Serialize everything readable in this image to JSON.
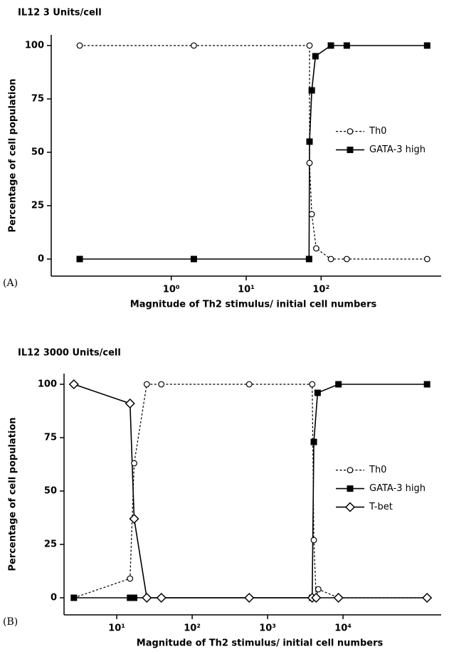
{
  "chart_data": [
    {
      "type": "line",
      "title": "IL12   3 Units/cell",
      "label": "(A)",
      "xlabel": "Magnitude of Th2 stimulus/ initial cell numbers",
      "ylabel": "Percentage of cell population",
      "xscale": "log",
      "xlim": [
        0.025,
        4000
      ],
      "ylim": [
        -8,
        105
      ],
      "xticks": [
        {
          "value": 1,
          "label": "10⁰"
        },
        {
          "value": 10,
          "label": "10¹"
        },
        {
          "value": 100,
          "label": "10²"
        }
      ],
      "yticks": [
        0,
        25,
        50,
        75,
        100
      ],
      "legend": "center right",
      "series": [
        {
          "name": "Th0",
          "color": "#000000",
          "line_style": "dashed",
          "marker": "circle",
          "x": [
            0.06,
            2,
            70,
            70,
            75,
            86,
            135,
            220,
            2600
          ],
          "values": [
            100,
            100,
            100,
            45,
            21,
            5,
            0,
            0,
            0
          ]
        },
        {
          "name": "GATA-3 high",
          "color": "#000000",
          "line_style": "solid",
          "marker": "square",
          "x": [
            0.06,
            2,
            69,
            70,
            75,
            84,
            135,
            220,
            2600
          ],
          "values": [
            0,
            0,
            0,
            55,
            79,
            95,
            100,
            100,
            100
          ]
        }
      ]
    },
    {
      "type": "line",
      "title": "IL12   3000 Units/cell",
      "label": "(B)",
      "xlabel": "Magnitude of Th2 stimulus/ initial cell numbers",
      "ylabel": "Percentage of cell population",
      "xscale": "log",
      "xlim": [
        2,
        200000
      ],
      "ylim": [
        -8,
        105
      ],
      "xticks": [
        {
          "value": 10,
          "label": "10¹"
        },
        {
          "value": 100,
          "label": "10²"
        },
        {
          "value": 1000,
          "label": "10³"
        },
        {
          "value": 10000,
          "label": "10⁴"
        }
      ],
      "yticks": [
        0,
        25,
        50,
        75,
        100
      ],
      "legend": "center right",
      "series": [
        {
          "name": "Th0",
          "color": "#000000",
          "line_style": "dashed",
          "marker": "circle",
          "x": [
            2.7,
            15,
            17,
            25,
            39,
            570,
            3900,
            4100,
            4400,
            4700,
            8700,
            130000
          ],
          "values": [
            0,
            9,
            63,
            100,
            100,
            100,
            100,
            27,
            0,
            4,
            0,
            0
          ]
        },
        {
          "name": "GATA-3 high",
          "color": "#000000",
          "line_style": "solid",
          "marker": "square",
          "x": [
            2.7,
            15,
            17,
            3900,
            4100,
            4600,
            8700,
            130000
          ],
          "values": [
            0,
            0,
            0,
            0,
            73,
            96,
            100,
            100
          ]
        },
        {
          "name": "T-bet",
          "color": "#000000",
          "line_style": "solid",
          "marker": "diamond",
          "x": [
            2.7,
            15,
            17,
            25,
            39,
            570,
            3900,
            4400,
            8700,
            130000
          ],
          "values": [
            100,
            91,
            37,
            0,
            0,
            0,
            0,
            0,
            0,
            0
          ]
        }
      ]
    }
  ]
}
